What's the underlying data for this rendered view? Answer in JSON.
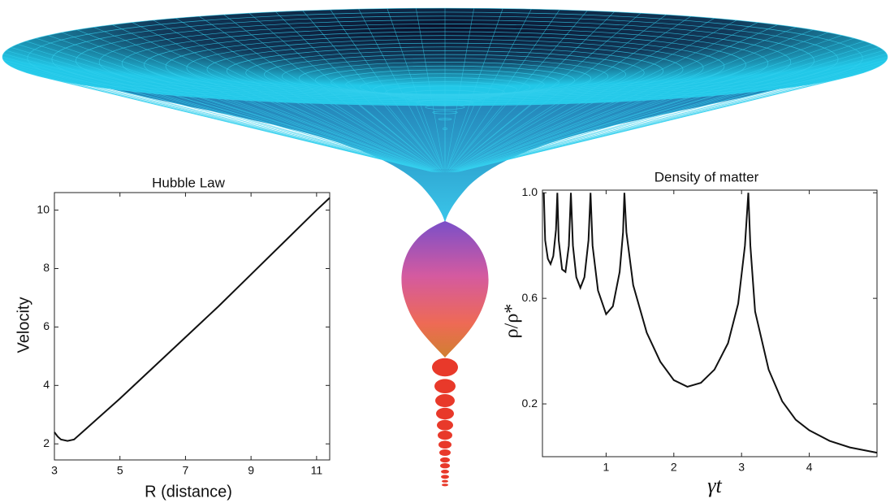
{
  "chart_data": [
    {
      "type": "line",
      "title": "Hubble Law",
      "xlabel": "R (distance)",
      "ylabel": "Velocity",
      "x": [
        3,
        3.1,
        3.2,
        3.4,
        3.6,
        4,
        5,
        6,
        7,
        8,
        9,
        10,
        11,
        11.4
      ],
      "series": [
        {
          "color": "#111111",
          "values": [
            2.4,
            2.25,
            2.15,
            2.1,
            2.15,
            2.55,
            3.55,
            4.6,
            5.65,
            6.7,
            7.8,
            8.9,
            10.0,
            10.42
          ]
        }
      ],
      "xlim": [
        3,
        11.4
      ],
      "ylim": [
        1.45,
        10.6
      ],
      "xticks": [
        3,
        5,
        7,
        9,
        11
      ],
      "yticks": [
        2,
        4,
        6,
        8,
        10
      ]
    },
    {
      "type": "line",
      "title": "Density of matter",
      "xlabel": "γt",
      "ylabel": "ρ/ρ*",
      "x": [
        0.08,
        0.1,
        0.14,
        0.18,
        0.22,
        0.26,
        0.28,
        0.3,
        0.35,
        0.4,
        0.45,
        0.48,
        0.51,
        0.56,
        0.62,
        0.68,
        0.74,
        0.77,
        0.8,
        0.88,
        1.0,
        1.1,
        1.2,
        1.25,
        1.27,
        1.3,
        1.4,
        1.6,
        1.8,
        2.0,
        2.2,
        2.4,
        2.6,
        2.8,
        2.95,
        3.05,
        3.1,
        3.13,
        3.2,
        3.4,
        3.6,
        3.8,
        4.0,
        4.3,
        4.6,
        5.0
      ],
      "series": [
        {
          "color": "#111111",
          "values": [
            1.0,
            0.82,
            0.75,
            0.73,
            0.76,
            0.86,
            1.0,
            0.82,
            0.71,
            0.7,
            0.8,
            1.0,
            0.8,
            0.68,
            0.64,
            0.68,
            0.82,
            1.0,
            0.8,
            0.63,
            0.54,
            0.57,
            0.7,
            0.85,
            1.0,
            0.85,
            0.65,
            0.47,
            0.36,
            0.29,
            0.265,
            0.28,
            0.33,
            0.43,
            0.58,
            0.8,
            1.0,
            0.8,
            0.55,
            0.33,
            0.21,
            0.14,
            0.1,
            0.06,
            0.035,
            0.015
          ]
        }
      ],
      "xlim": [
        0.06,
        5
      ],
      "ylim": [
        0,
        1.01
      ],
      "xticks": [
        1,
        2,
        3,
        4
      ],
      "yticks": [
        0.2,
        0.6,
        {
          "value": 1,
          "label": "1.0"
        }
      ]
    }
  ]
}
